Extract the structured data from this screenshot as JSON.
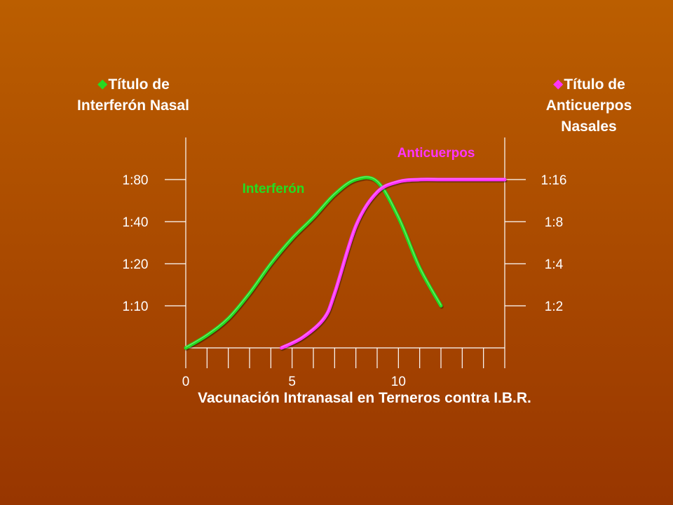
{
  "chart_data": {
    "type": "line",
    "xlabel": "Vacunación Intranasal en Terneros contra I.B.R.",
    "x_ticks": [
      "0",
      "5",
      "10"
    ],
    "x_tick_values": [
      0,
      5,
      10
    ],
    "xlim": [
      0,
      15
    ],
    "left_axis": {
      "title_line1": "Título de",
      "title_line2": "Interferón Nasal",
      "bullet": "❖",
      "bullet_color": "#22dd22",
      "ticks": [
        "1:10",
        "1:20",
        "1:40",
        "1:80"
      ],
      "tick_levels": [
        1,
        2,
        3,
        4
      ]
    },
    "right_axis": {
      "title_line1": "Título de",
      "title_line2": "Anticuerpos",
      "title_line3": "Nasales",
      "bullet": "❖",
      "bullet_color": "#ff33ff",
      "ticks": [
        "1:2",
        "1:4",
        "1:8",
        "1:16"
      ],
      "tick_levels": [
        1,
        2,
        3,
        4
      ]
    },
    "series": [
      {
        "name": "Interferón",
        "axis": "left",
        "color": "#22dd22",
        "label_color": "#22dd22",
        "x": [
          0,
          1,
          2,
          3,
          4,
          5,
          6,
          7,
          8,
          9,
          10,
          11,
          12
        ],
        "y": [
          0,
          0.3,
          0.7,
          1.3,
          2.0,
          2.6,
          3.1,
          3.65,
          4.0,
          3.95,
          3.1,
          1.9,
          1.0
        ]
      },
      {
        "name": "Anticuerpos",
        "axis": "right",
        "color": "#ff33ff",
        "label_color": "#ff33ff",
        "x": [
          4.5,
          5.5,
          6.5,
          7.0,
          8.0,
          9.0,
          10.0,
          11.0,
          12.0,
          13.0,
          14.0,
          15.0
        ],
        "y": [
          0,
          0.25,
          0.7,
          1.3,
          2.9,
          3.7,
          3.95,
          4.0,
          4.0,
          4.0,
          4.0,
          4.0
        ]
      }
    ]
  }
}
